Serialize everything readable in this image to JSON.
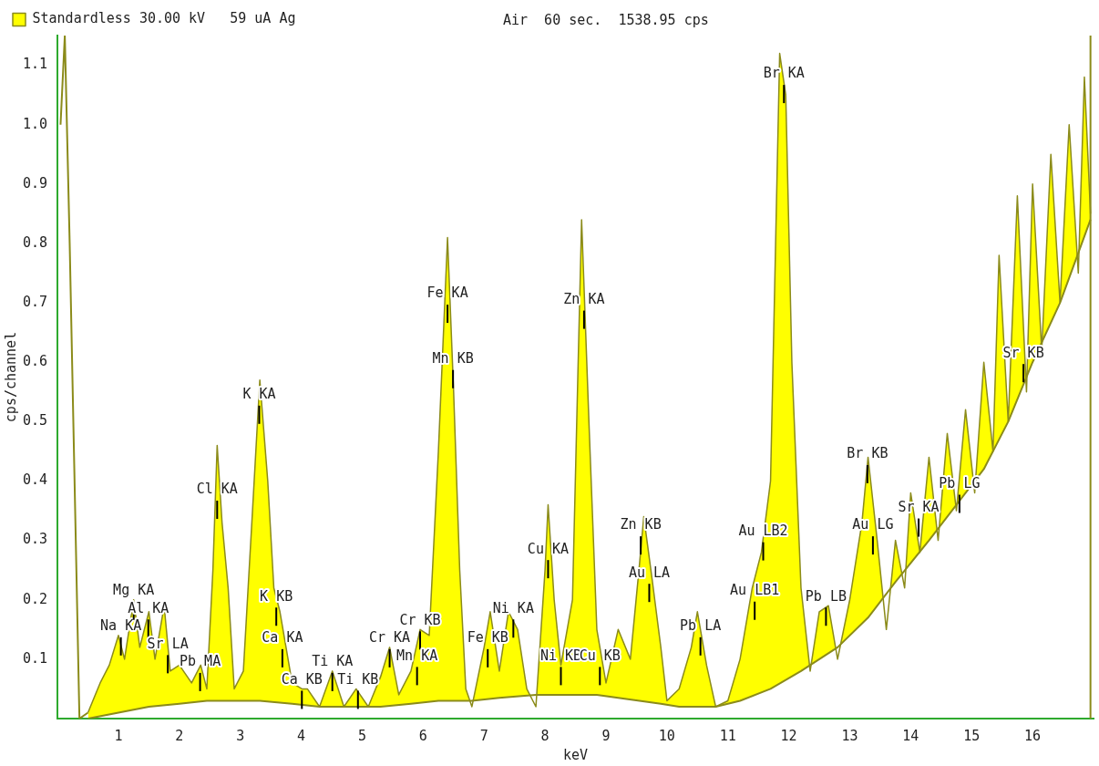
{
  "chart_data": {
    "type": "area",
    "xlabel": "keV",
    "ylabel": "cps/channel",
    "xlim": [
      0,
      17
    ],
    "ylim": [
      0,
      1.15
    ],
    "xticks": [
      1,
      2,
      3,
      4,
      5,
      6,
      7,
      8,
      9,
      10,
      11,
      12,
      13,
      14,
      15,
      16
    ],
    "yticks": [
      0.1,
      0.2,
      0.3,
      0.4,
      0.5,
      0.6,
      0.7,
      0.8,
      0.9,
      {
        "value": 1,
        "label": "1.0"
      },
      1.1
    ],
    "legend": "top left",
    "grid": false,
    "series": [
      {
        "type": "line",
        "color": "#8b8b1a",
        "x": [
          0.5,
          1.0,
          1.5,
          2.0,
          2.45,
          3.05,
          3.32,
          3.85,
          4.3,
          4.9,
          5.3,
          5.8,
          6.25,
          6.8,
          7.25,
          7.85,
          8.26,
          8.85,
          9.2,
          9.9,
          10.2,
          10.8,
          11.2,
          11.7,
          12.2,
          12.8,
          13.3,
          13.75,
          14.3,
          14.75,
          15.2,
          15.6,
          16.0,
          16.45,
          16.95
        ],
        "values": [
          0,
          0.01,
          0.02,
          0.025,
          0.03,
          0.03,
          0.03,
          0.025,
          0.02,
          0.02,
          0.02,
          0.025,
          0.03,
          0.03,
          0.035,
          0.04,
          0.04,
          0.04,
          0.035,
          0.025,
          0.02,
          0.02,
          0.03,
          0.05,
          0.08,
          0.12,
          0.17,
          0.23,
          0.3,
          0.36,
          0.42,
          0.5,
          0.6,
          0.7,
          0.84
        ]
      },
      {
        "type": "line",
        "color": "#8b8b1a",
        "x": [
          0.05,
          0.12,
          0.2,
          0.3,
          0.36,
          0.5
        ],
        "values": [
          1.0,
          1.15,
          0.8,
          0.3,
          0.0,
          0.01
        ]
      },
      {
        "name": "Standardless 30.00 kV   59 uA Ag",
        "color": "#ffff00",
        "x": [
          0.5,
          0.7,
          0.85,
          1.0,
          1.1,
          1.25,
          1.35,
          1.5,
          1.6,
          1.75,
          1.85,
          2.0,
          2.2,
          2.35,
          2.45,
          2.55,
          2.62,
          2.7,
          2.8,
          2.9,
          3.05,
          3.2,
          3.32,
          3.45,
          3.55,
          3.65,
          3.75,
          3.85,
          4.01,
          4.1,
          4.3,
          4.51,
          4.7,
          4.9,
          5.1,
          5.3,
          5.45,
          5.6,
          5.8,
          5.95,
          6.1,
          6.25,
          6.4,
          6.5,
          6.6,
          6.7,
          6.8,
          7.0,
          7.1,
          7.25,
          7.4,
          7.55,
          7.7,
          7.85,
          8.0,
          8.05,
          8.15,
          8.26,
          8.45,
          8.6,
          8.72,
          8.85,
          9.0,
          9.2,
          9.4,
          9.55,
          9.62,
          9.75,
          9.9,
          10.0,
          10.2,
          10.4,
          10.5,
          10.65,
          10.8,
          11.0,
          11.2,
          11.4,
          11.55,
          11.7,
          11.85,
          11.95,
          12.05,
          12.2,
          12.35,
          12.5,
          12.65,
          12.8,
          13.0,
          13.2,
          13.3,
          13.45,
          13.6,
          13.75,
          13.9,
          14.0,
          14.15,
          14.3,
          14.45,
          14.6,
          14.75,
          14.9,
          15.05,
          15.2,
          15.35,
          15.45,
          15.6,
          15.75,
          15.9,
          16.0,
          16.15,
          16.3,
          16.45,
          16.6,
          16.75,
          16.85,
          16.95
        ],
        "values": [
          0.01,
          0.06,
          0.09,
          0.14,
          0.1,
          0.2,
          0.12,
          0.18,
          0.1,
          0.19,
          0.08,
          0.09,
          0.06,
          0.09,
          0.05,
          0.25,
          0.46,
          0.33,
          0.22,
          0.05,
          0.08,
          0.35,
          0.57,
          0.4,
          0.22,
          0.18,
          0.12,
          0.06,
          0.05,
          0.05,
          0.02,
          0.08,
          0.02,
          0.05,
          0.02,
          0.07,
          0.12,
          0.04,
          0.08,
          0.15,
          0.14,
          0.45,
          0.81,
          0.55,
          0.25,
          0.05,
          0.02,
          0.12,
          0.18,
          0.08,
          0.18,
          0.15,
          0.05,
          0.02,
          0.25,
          0.36,
          0.2,
          0.09,
          0.2,
          0.84,
          0.5,
          0.15,
          0.06,
          0.15,
          0.1,
          0.26,
          0.34,
          0.24,
          0.12,
          0.03,
          0.05,
          0.12,
          0.18,
          0.09,
          0.02,
          0.03,
          0.1,
          0.22,
          0.28,
          0.4,
          1.12,
          1.05,
          0.6,
          0.22,
          0.08,
          0.18,
          0.19,
          0.1,
          0.2,
          0.33,
          0.44,
          0.3,
          0.15,
          0.3,
          0.22,
          0.38,
          0.28,
          0.44,
          0.3,
          0.48,
          0.35,
          0.52,
          0.38,
          0.6,
          0.45,
          0.78,
          0.5,
          0.88,
          0.55,
          0.9,
          0.62,
          0.95,
          0.7,
          1.0,
          0.75,
          1.08,
          0.85
        ]
      }
    ],
    "ref_lines": [
      {
        "axis": "x",
        "value": 16.95,
        "color": "#8b8b1a"
      }
    ],
    "annotations": [
      "Air  60 sec.  1538.95 cps",
      {
        "text": "Na KA",
        "x": 1.04,
        "y": 0.14
      },
      {
        "text": "Mg KA",
        "x": 1.25,
        "y": 0.2
      },
      {
        "text": "Al KA",
        "x": 1.49,
        "y": 0.17
      },
      {
        "text": "Sr LA",
        "x": 1.81,
        "y": 0.11
      },
      {
        "text": "Pb MA",
        "x": 2.34,
        "y": 0.08
      },
      {
        "text": "Cl KA",
        "x": 2.62,
        "y": 0.37
      },
      {
        "text": "K KA",
        "x": 3.31,
        "y": 0.53
      },
      {
        "text": "K KB",
        "x": 3.59,
        "y": 0.19
      },
      {
        "text": "Ca KA",
        "x": 3.69,
        "y": 0.12
      },
      {
        "text": "Ca KB",
        "x": 4.01,
        "y": 0.05
      },
      {
        "text": "Ti KA",
        "x": 4.51,
        "y": 0.08
      },
      {
        "text": "Ti KB",
        "x": 4.93,
        "y": 0.05
      },
      {
        "text": "Cr KA",
        "x": 5.45,
        "y": 0.12
      },
      {
        "text": "Cr KB",
        "x": 5.95,
        "y": 0.15
      },
      {
        "text": "Mn KA",
        "x": 5.9,
        "y": 0.09
      },
      {
        "text": "Fe KA",
        "x": 6.4,
        "y": 0.7
      },
      {
        "text": "Mn KB",
        "x": 6.49,
        "y": 0.59
      },
      {
        "text": "Fe KB",
        "x": 7.06,
        "y": 0.12
      },
      {
        "text": "Ni KA",
        "x": 7.48,
        "y": 0.17
      },
      {
        "text": "Cu KA",
        "x": 8.05,
        "y": 0.27
      },
      {
        "text": "Ni KB",
        "x": 8.26,
        "y": 0.09
      },
      {
        "text": "Cu KB",
        "x": 8.9,
        "y": 0.09
      },
      {
        "text": "Zn KA",
        "x": 8.64,
        "y": 0.69
      },
      {
        "text": "Zn KB",
        "x": 9.57,
        "y": 0.31
      },
      {
        "text": "Au LA",
        "x": 9.71,
        "y": 0.23
      },
      {
        "text": "Pb LA",
        "x": 10.55,
        "y": 0.14
      },
      {
        "text": "Au LB1",
        "x": 11.44,
        "y": 0.2
      },
      {
        "text": "Au LB2",
        "x": 11.58,
        "y": 0.3
      },
      {
        "text": "Br KA",
        "x": 11.92,
        "y": 1.07
      },
      {
        "text": "Pb LB",
        "x": 12.61,
        "y": 0.19
      },
      {
        "text": "Br KB",
        "x": 13.29,
        "y": 0.43
      },
      {
        "text": "Au LG",
        "x": 13.38,
        "y": 0.31
      },
      {
        "text": "Sr KA",
        "x": 14.13,
        "y": 0.34
      },
      {
        "text": "Pb LG",
        "x": 14.8,
        "y": 0.38
      },
      {
        "text": "Sr KB",
        "x": 15.85,
        "y": 0.6
      }
    ]
  }
}
